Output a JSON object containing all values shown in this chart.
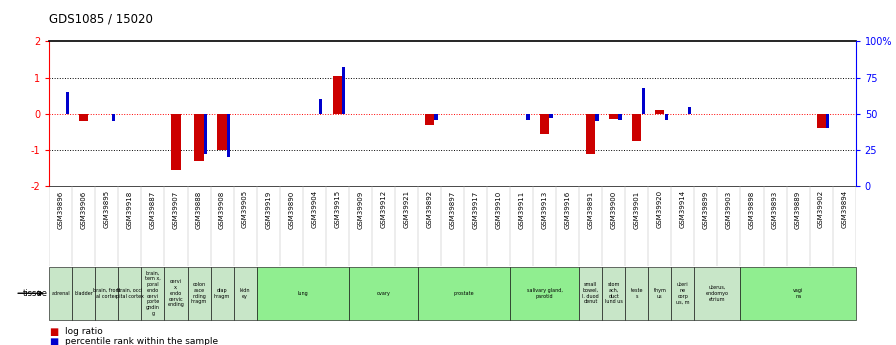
{
  "title": "GDS1085 / 15020",
  "samples": [
    "GSM39896",
    "GSM39906",
    "GSM39895",
    "GSM39918",
    "GSM39887",
    "GSM39907",
    "GSM39888",
    "GSM39908",
    "GSM39905",
    "GSM39919",
    "GSM39890",
    "GSM39904",
    "GSM39915",
    "GSM39909",
    "GSM39912",
    "GSM39921",
    "GSM39892",
    "GSM39897",
    "GSM39917",
    "GSM39910",
    "GSM39911",
    "GSM39913",
    "GSM39916",
    "GSM39891",
    "GSM39900",
    "GSM39901",
    "GSM39920",
    "GSM39914",
    "GSM39899",
    "GSM39903",
    "GSM39898",
    "GSM39893",
    "GSM39889",
    "GSM39902",
    "GSM39894"
  ],
  "log_ratio": [
    0.0,
    -0.2,
    0.0,
    0.0,
    0.0,
    -1.55,
    -1.3,
    -1.0,
    0.0,
    0.0,
    0.0,
    0.0,
    1.05,
    0.0,
    0.0,
    0.0,
    -0.3,
    0.0,
    0.0,
    0.0,
    0.0,
    -0.55,
    0.0,
    -1.1,
    -0.15,
    -0.75,
    0.1,
    0.0,
    0.0,
    0.0,
    0.0,
    0.0,
    0.0,
    -0.4,
    0.0
  ],
  "percentile_rank": [
    65,
    null,
    45,
    null,
    null,
    null,
    22,
    20,
    null,
    null,
    null,
    60,
    82,
    null,
    null,
    null,
    46,
    null,
    null,
    null,
    46,
    47,
    null,
    45,
    46,
    68,
    46,
    55,
    null,
    null,
    null,
    null,
    null,
    40,
    null
  ],
  "tissues": [
    {
      "label": "adrenal",
      "start": 0,
      "end": 1,
      "color": "#c8e6c8"
    },
    {
      "label": "bladder",
      "start": 1,
      "end": 2,
      "color": "#c8e6c8"
    },
    {
      "label": "brain, front\nal cortex",
      "start": 2,
      "end": 3,
      "color": "#c8e6c8"
    },
    {
      "label": "brain, occi\npital cortex",
      "start": 3,
      "end": 4,
      "color": "#c8e6c8"
    },
    {
      "label": "brain,\ntem x,\nporal\nendo\ncervi\nporte\ngndin\ng",
      "start": 4,
      "end": 5,
      "color": "#c8e6c8"
    },
    {
      "label": "cervi\nx,\nendo\ncervic\nending",
      "start": 5,
      "end": 6,
      "color": "#c8e6c8"
    },
    {
      "label": "colon\nasce\nnding\nhragm",
      "start": 6,
      "end": 7,
      "color": "#c8e6c8"
    },
    {
      "label": "diap\nhragm",
      "start": 7,
      "end": 8,
      "color": "#c8e6c8"
    },
    {
      "label": "kidn\ney",
      "start": 8,
      "end": 9,
      "color": "#c8e6c8"
    },
    {
      "label": "lung",
      "start": 9,
      "end": 13,
      "color": "#90ee90"
    },
    {
      "label": "ovary",
      "start": 13,
      "end": 16,
      "color": "#90ee90"
    },
    {
      "label": "prostate",
      "start": 16,
      "end": 20,
      "color": "#90ee90"
    },
    {
      "label": "salivary gland,\nparotid",
      "start": 20,
      "end": 23,
      "color": "#90ee90"
    },
    {
      "label": "small\nbowel,\nl. duod\ndenut",
      "start": 23,
      "end": 24,
      "color": "#c8e6c8"
    },
    {
      "label": "stom\nach,\nduct\nlund us",
      "start": 24,
      "end": 25,
      "color": "#c8e6c8"
    },
    {
      "label": "teste\ns",
      "start": 25,
      "end": 26,
      "color": "#c8e6c8"
    },
    {
      "label": "thym\nus",
      "start": 26,
      "end": 27,
      "color": "#c8e6c8"
    },
    {
      "label": "uteri\nne\ncorp\nus, m",
      "start": 27,
      "end": 28,
      "color": "#c8e6c8"
    },
    {
      "label": "uterus,\nendomyo\netrium",
      "start": 28,
      "end": 30,
      "color": "#c8e6c8"
    },
    {
      "label": "vagi\nna",
      "start": 30,
      "end": 35,
      "color": "#90ee90"
    }
  ],
  "bar_color_red": "#cc0000",
  "bar_color_blue": "#0000cc",
  "bg_color": "#ffffff",
  "label_bg": "#d0d0d0",
  "ylim_left": [
    -2,
    2
  ],
  "ylim_right": [
    0,
    100
  ],
  "yticks_left": [
    -2,
    -1,
    0,
    1,
    2
  ],
  "yticks_right": [
    0,
    25,
    50,
    75,
    100
  ],
  "yticklabels_left": [
    "-2",
    "-1",
    "0",
    "1",
    "2"
  ],
  "yticklabels_right": [
    "0",
    "25",
    "50",
    "75",
    "100%"
  ]
}
